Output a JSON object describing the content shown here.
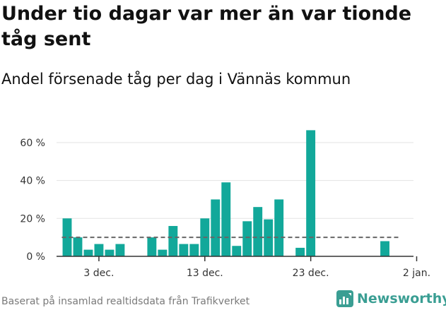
{
  "title": "Under tio dagar var mer än var tionde tåg sent",
  "subtitle": "Andel försenade tåg per dag i Vännäs kommun",
  "source": "Baserat på insamlad realtidsdata från Trafikverket",
  "brand": {
    "name": "Newsworthy",
    "color": "#3a9e93"
  },
  "chart_data": {
    "type": "bar",
    "x_start": "2023-11-30",
    "x_end": "2024-01-02",
    "x": [
      "2023-11-30",
      "2023-12-01",
      "2023-12-02",
      "2023-12-03",
      "2023-12-04",
      "2023-12-05",
      "2023-12-06",
      "2023-12-07",
      "2023-12-08",
      "2023-12-09",
      "2023-12-10",
      "2023-12-11",
      "2023-12-12",
      "2023-12-13",
      "2023-12-14",
      "2023-12-15",
      "2023-12-16",
      "2023-12-17",
      "2023-12-18",
      "2023-12-19",
      "2023-12-20",
      "2023-12-21",
      "2023-12-22",
      "2023-12-23",
      "2023-12-24",
      "2023-12-25",
      "2023-12-26",
      "2023-12-27",
      "2023-12-28",
      "2023-12-29",
      "2023-12-30",
      "2023-12-31",
      "2024-01-01"
    ],
    "values": [
      20,
      10,
      3.5,
      6.5,
      3.5,
      6.5,
      null,
      null,
      10,
      3.5,
      16,
      6.5,
      6.5,
      20,
      30,
      39,
      5.5,
      18.5,
      26,
      19.5,
      30,
      null,
      4.5,
      66.5,
      null,
      null,
      null,
      null,
      null,
      null,
      8,
      null,
      null
    ],
    "reference_line": {
      "value": 10,
      "style": "dashed",
      "color": "#666666",
      "from": "2023-11-30",
      "to": "2023-12-31"
    },
    "xticks": [
      {
        "date": "2023-12-03",
        "label": "3 dec."
      },
      {
        "date": "2023-12-13",
        "label": "13 dec."
      },
      {
        "date": "2023-12-23",
        "label": "23 dec."
      },
      {
        "date": "2024-01-02",
        "label": "2 jan."
      }
    ],
    "yticks": [
      {
        "value": 0,
        "label": "0 %"
      },
      {
        "value": 20,
        "label": "20 %"
      },
      {
        "value": 40,
        "label": "40 %"
      },
      {
        "value": 60,
        "label": "60 %"
      }
    ],
    "ylim": [
      0,
      70
    ],
    "grid": true,
    "bar_color": "#12a89a",
    "grid_color": "#e3e3e3",
    "axis_color": "#333333"
  }
}
